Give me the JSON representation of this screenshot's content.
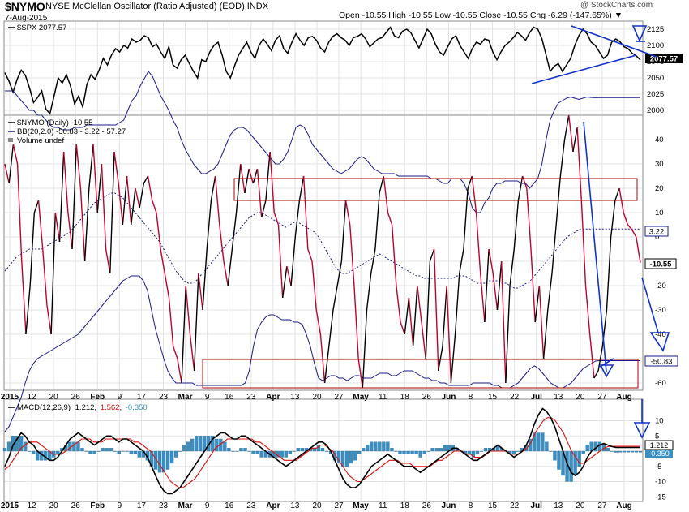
{
  "header": {
    "symbol": "$NYMO",
    "description": "NYSE McClellan Oscillator (Ratio Adjusted) (EOD)  INDX",
    "date": "7-Aug-2015",
    "ohlc_label": "Open -10.55  High -10.55  Low -10.55  Close -10.55  Chg -6.29 (-147.65%) ▼",
    "brand": "@ StockCharts.com"
  },
  "colors": {
    "nymo_up": "#000000",
    "nymo_down": "#c0002a",
    "bb": "#1a1a8c",
    "spx": "#000000",
    "annot": "#1133cc",
    "box": "#b00000",
    "hist": "#3a8fc2",
    "macd_signal": "#e01010",
    "grid": "#e3e3e3"
  },
  "x_axis": {
    "labels": [
      {
        "text": "2015",
        "bold": true
      },
      {
        "text": "12"
      },
      {
        "text": "20"
      },
      {
        "text": "26"
      },
      {
        "text": "Feb",
        "bold": true
      },
      {
        "text": "9"
      },
      {
        "text": "17"
      },
      {
        "text": "23"
      },
      {
        "text": "Mar",
        "bold": true
      },
      {
        "text": "9"
      },
      {
        "text": "16"
      },
      {
        "text": "23"
      },
      {
        "text": "Apr",
        "bold": true
      },
      {
        "text": "13"
      },
      {
        "text": "20"
      },
      {
        "text": "27"
      },
      {
        "text": "May",
        "bold": true
      },
      {
        "text": "11"
      },
      {
        "text": "18"
      },
      {
        "text": "26"
      },
      {
        "text": "Jun",
        "bold": true
      },
      {
        "text": "8"
      },
      {
        "text": "15"
      },
      {
        "text": "22"
      },
      {
        "text": "Jul",
        "bold": true
      },
      {
        "text": "13"
      },
      {
        "text": "20"
      },
      {
        "text": "27"
      },
      {
        "text": "Aug",
        "bold": true
      }
    ]
  },
  "chart_data": [
    {
      "type": "line",
      "legend": "$SPX 2077.57",
      "last_value_label": "2077.57",
      "yticks": [
        2000,
        2025,
        2050,
        2075,
        2100,
        2125
      ],
      "ylim": [
        1995,
        2135
      ],
      "values": [
        2058,
        2045,
        2028,
        2048,
        2062,
        2054,
        2035,
        2012,
        2020,
        2030,
        2002,
        1995,
        2022,
        2050,
        2042,
        2055,
        2038,
        2010,
        2022,
        2005,
        2040,
        2055,
        2048,
        2062,
        2080,
        2070,
        2085,
        2095,
        2090,
        2100,
        2096,
        2110,
        2105,
        2108,
        2115,
        2112,
        2098,
        2102,
        2090,
        2080,
        2098,
        2070,
        2065,
        2078,
        2085,
        2072,
        2060,
        2050,
        2078,
        2075,
        2090,
        2100,
        2105,
        2085,
        2060,
        2050,
        2068,
        2085,
        2095,
        2105,
        2090,
        2080,
        2100,
        2110,
        2102,
        2092,
        2108,
        2115,
        2095,
        2088,
        2105,
        2118,
        2108,
        2100,
        2112,
        2114,
        2108,
        2096,
        2090,
        2105,
        2114,
        2118,
        2112,
        2108,
        2100,
        2112,
        2114,
        2118,
        2110,
        2098,
        2104,
        2110,
        2112,
        2120,
        2128,
        2115,
        2112,
        2122,
        2125,
        2120,
        2108,
        2096,
        2110,
        2125,
        2118,
        2102,
        2090,
        2085,
        2098,
        2110,
        2115,
        2100,
        2090,
        2080,
        2095,
        2105,
        2102,
        2110,
        2108,
        2090,
        2078,
        2090,
        2100,
        2105,
        2112,
        2120,
        2115,
        2108,
        2120,
        2128,
        2125,
        2110,
        2085,
        2060,
        2068,
        2072,
        2060,
        2070,
        2080,
        2100,
        2115,
        2125,
        2118,
        2105,
        2100,
        2090,
        2080,
        2085,
        2105,
        2110,
        2106,
        2098,
        2095,
        2088,
        2084,
        2077.57
      ]
    },
    {
      "type": "line",
      "legend": "$NYMO (Daily) -10.55",
      "legend_bb": "BB(20,2.0) -50.83 - 3.22 - 57.27",
      "legend_vol": "Volume undef",
      "last_value_label": "-10.55",
      "mid_label": "3.22",
      "lower_label": "-50.83",
      "yticks": [
        -60,
        -50,
        -40,
        -30,
        -20,
        -10,
        0,
        10,
        20,
        30,
        40
      ],
      "ylim": [
        -62,
        48
      ],
      "values": [
        30,
        22,
        38,
        30,
        -10,
        -40,
        -20,
        10,
        15,
        -5,
        -28,
        -40,
        10,
        -2,
        35,
        10,
        -5,
        38,
        20,
        -10,
        20,
        38,
        10,
        30,
        -5,
        -15,
        35,
        22,
        5,
        25,
        5,
        20,
        12,
        22,
        25,
        15,
        10,
        -5,
        -15,
        -25,
        -45,
        -50,
        -60,
        -20,
        -40,
        -55,
        -15,
        -30,
        -5,
        15,
        25,
        5,
        -10,
        -20,
        -5,
        10,
        30,
        18,
        28,
        22,
        28,
        8,
        15,
        35,
        10,
        5,
        -25,
        -12,
        -20,
        0,
        15,
        25,
        -5,
        -10,
        -30,
        -40,
        -60,
        -45,
        -30,
        -20,
        -10,
        15,
        5,
        -20,
        -50,
        -62,
        -30,
        -15,
        -5,
        18,
        25,
        10,
        5,
        -20,
        -35,
        -40,
        -25,
        -45,
        -20,
        -35,
        -50,
        -10,
        -5,
        -55,
        -45,
        -20,
        -60,
        -40,
        -15,
        -5,
        20,
        25,
        10,
        -15,
        -35,
        -5,
        -15,
        -30,
        -10,
        -60,
        -20,
        -5,
        15,
        25,
        20,
        -5,
        -35,
        -20,
        -50,
        -30,
        -15,
        5,
        25,
        40,
        50,
        35,
        45,
        15,
        -20,
        -40,
        -58,
        -55,
        -45,
        -30,
        0,
        15,
        20,
        10,
        5,
        3,
        0,
        -10.55
      ],
      "bb_upper": [
        60,
        60,
        60,
        58,
        56,
        54,
        52,
        52,
        50,
        50,
        48,
        46,
        45,
        45,
        44,
        44,
        44,
        45,
        45,
        45,
        46,
        46,
        46,
        46,
        46,
        46,
        46,
        46,
        47,
        48,
        52,
        56,
        58,
        62,
        65,
        68,
        66,
        62,
        58,
        55,
        52,
        48,
        45,
        40,
        36,
        33,
        30,
        28,
        26,
        26,
        27,
        28,
        30,
        34,
        38,
        42,
        44,
        45,
        45,
        44,
        42,
        40,
        38,
        36,
        34,
        32,
        30,
        30,
        32,
        35,
        40,
        45,
        46,
        45,
        42,
        38,
        36,
        34,
        32,
        30,
        28,
        27,
        26,
        27,
        28,
        30,
        32,
        33,
        32,
        30,
        28,
        27,
        26,
        26,
        26,
        26,
        25,
        25,
        25,
        25,
        25,
        25,
        25,
        25,
        24,
        24,
        23,
        22,
        22,
        24,
        24,
        24,
        22,
        18,
        12,
        10,
        10,
        14,
        16,
        20,
        22,
        22,
        23,
        23,
        23,
        23,
        22,
        22,
        20,
        22,
        24,
        30,
        40,
        48,
        52,
        55,
        56,
        57,
        57.5,
        57,
        56.5,
        57,
        57.5,
        57.3,
        57.2,
        57.27,
        57.27,
        57.27,
        57.27,
        57.27,
        57.27,
        57.27,
        57.27,
        57.27,
        57.27,
        57.27
      ],
      "bb_mid": [
        -14,
        -12,
        -10,
        -8,
        -7,
        -6,
        -5,
        -5,
        -5,
        -5,
        -4,
        -3,
        -2,
        -1,
        0,
        1,
        2,
        4,
        6,
        8,
        10,
        12,
        14,
        15,
        16,
        17,
        18,
        18,
        17,
        16,
        14,
        12,
        10,
        8,
        6,
        4,
        2,
        0,
        -2,
        -5,
        -8,
        -11,
        -14,
        -16,
        -18,
        -19,
        -19,
        -18,
        -16,
        -14,
        -12,
        -10,
        -8,
        -6,
        -4,
        -2,
        0,
        2,
        4,
        6,
        8,
        9,
        10,
        10,
        9,
        8,
        7,
        6,
        5,
        4,
        5,
        6,
        6,
        5,
        4,
        3,
        2,
        0,
        -3,
        -6,
        -9,
        -12,
        -14,
        -15,
        -15,
        -14,
        -13,
        -12,
        -11,
        -10,
        -9,
        -8,
        -7,
        -8,
        -9,
        -10,
        -11,
        -12,
        -13,
        -14,
        -15,
        -16,
        -16,
        -17,
        -17,
        -17,
        -17,
        -17,
        -17,
        -17,
        -17,
        -16,
        -16,
        -16,
        -17,
        -18,
        -19,
        -19,
        -19,
        -18,
        -18,
        -18,
        -19,
        -19,
        -20,
        -21,
        -21,
        -20,
        -19,
        -18,
        -16,
        -14,
        -12,
        -10,
        -8,
        -6,
        -4,
        -2,
        0,
        1,
        2,
        3,
        3.2,
        3.22,
        3.22,
        3.22,
        3.22,
        3.22,
        3.22,
        3.22,
        3.22,
        3.22,
        3.22,
        3.22,
        3.22,
        3.22,
        3.22
      ],
      "bb_lower": [
        -80,
        -78,
        -74,
        -70,
        -66,
        -60,
        -55,
        -52,
        -50,
        -49,
        -48,
        -47,
        -46,
        -45,
        -44,
        -43,
        -42,
        -41,
        -40,
        -38,
        -36,
        -34,
        -32,
        -30,
        -28,
        -26,
        -24,
        -22,
        -20,
        -18,
        -17,
        -16,
        -16,
        -16,
        -18,
        -22,
        -30,
        -38,
        -44,
        -50,
        -55,
        -58,
        -60,
        -60,
        -60,
        -60,
        -60,
        -61,
        -61,
        -61,
        -61,
        -61,
        -61,
        -61,
        -61,
        -61,
        -61,
        -61,
        -61,
        -60,
        -55,
        -45,
        -38,
        -35,
        -33,
        -32,
        -32,
        -33,
        -34,
        -34,
        -34,
        -35,
        -35,
        -36,
        -40,
        -45,
        -52,
        -58,
        -59,
        -58,
        -57,
        -57,
        -58,
        -58,
        -59,
        -58,
        -57,
        -57,
        -58,
        -58,
        -58,
        -57,
        -56,
        -56,
        -56,
        -57,
        -57,
        -56,
        -55,
        -55,
        -55,
        -56,
        -57,
        -58,
        -58,
        -59,
        -59,
        -60,
        -60,
        -61,
        -61,
        -61,
        -61,
        -61,
        -61,
        -60,
        -60,
        -60,
        -60,
        -60,
        -61,
        -61,
        -62,
        -62,
        -62,
        -61,
        -60,
        -58,
        -56,
        -54,
        -53,
        -54,
        -56,
        -58,
        -60,
        -61,
        -62,
        -62,
        -61,
        -60,
        -58,
        -56,
        -54,
        -53,
        -52,
        -51,
        -50.83,
        -50.83,
        -50.83,
        -50.83,
        -50.83,
        -50.83,
        -50.83,
        -50.83,
        -50.83,
        -50.83,
        -50.83
      ]
    },
    {
      "type": "line",
      "legend_name": "MACD(12,26,9)",
      "legend_macd": "1.212",
      "legend_signal": "1.562",
      "legend_hist": "-0.350",
      "last_value_label": "1.212",
      "second_label": "-0.350",
      "yticks": [
        -15,
        -10,
        -5,
        0,
        5,
        10
      ],
      "ylim": [
        -16,
        16
      ],
      "macd": [
        -5,
        -2,
        2,
        4,
        6,
        5,
        3,
        2,
        0,
        -1,
        -2,
        -3,
        -3,
        -2,
        0,
        2,
        4,
        5,
        6,
        5,
        4,
        3,
        2,
        3,
        4,
        5,
        5,
        4,
        3,
        4,
        4,
        3,
        2,
        1,
        0,
        -2,
        -5,
        -8,
        -11,
        -13,
        -14,
        -14,
        -13,
        -12,
        -10,
        -8,
        -6,
        -4,
        -2,
        0,
        2,
        4,
        5,
        6,
        6,
        5,
        4,
        4,
        5,
        5,
        4,
        3,
        2,
        1,
        0,
        -1,
        -2,
        -3,
        -4,
        -5,
        -4,
        -3,
        -2,
        -1,
        0,
        1,
        2,
        3,
        3,
        2,
        0,
        -3,
        -6,
        -9,
        -11,
        -12,
        -12,
        -11,
        -9,
        -7,
        -5,
        -4,
        -3,
        -2,
        -1,
        -2,
        -3,
        -4,
        -5,
        -5,
        -5,
        -6,
        -7,
        -6,
        -5,
        -4,
        -3,
        -2,
        -1,
        0,
        1,
        1,
        0,
        -1,
        -2,
        -3,
        -3,
        -2,
        -1,
        0,
        1,
        2,
        1,
        0,
        -1,
        -2,
        -1,
        0,
        2,
        5,
        9,
        12,
        14,
        13,
        11,
        8,
        4,
        0,
        -4,
        -7,
        -8,
        -7,
        -5,
        -2,
        0,
        1,
        2,
        2.5,
        2,
        1.5,
        1.2,
        1.212,
        1.212,
        1.212,
        1.212,
        1.212,
        1.212
      ],
      "signal": [
        -6,
        -5,
        -3,
        -1,
        1,
        2,
        3,
        3,
        3,
        2,
        1,
        0,
        -1,
        -1,
        -1,
        0,
        1,
        2,
        3,
        4,
        4,
        4,
        3,
        3,
        3,
        4,
        4,
        4,
        4,
        4,
        4,
        4,
        3,
        3,
        2,
        1,
        0,
        -2,
        -4,
        -6,
        -8,
        -10,
        -11,
        -12,
        -12,
        -11,
        -10,
        -9,
        -7,
        -5,
        -3,
        -1,
        1,
        2,
        3,
        4,
        4,
        4,
        4,
        4,
        4,
        4,
        3,
        3,
        2,
        1,
        0,
        -1,
        -2,
        -3,
        -3,
        -3,
        -3,
        -2,
        -1,
        0,
        1,
        1,
        2,
        2,
        1,
        0,
        -2,
        -4,
        -6,
        -8,
        -9,
        -10,
        -10,
        -9,
        -8,
        -7,
        -6,
        -5,
        -4,
        -3,
        -3,
        -3,
        -4,
        -4,
        -4,
        -5,
        -5,
        -5,
        -5,
        -5,
        -4,
        -3,
        -3,
        -2,
        -1,
        0,
        0,
        0,
        -1,
        -1,
        -2,
        -2,
        -2,
        -1,
        0,
        0,
        0,
        0,
        0,
        -1,
        -1,
        -1,
        0,
        1,
        3,
        6,
        8,
        10,
        11,
        11,
        10,
        8,
        6,
        3,
        0,
        -2,
        -4,
        -4,
        -3,
        -2,
        -1,
        0,
        1,
        1.5,
        1.6,
        1.56,
        1.562,
        1.562,
        1.562,
        1.562,
        1.562,
        1.562
      ]
    }
  ]
}
